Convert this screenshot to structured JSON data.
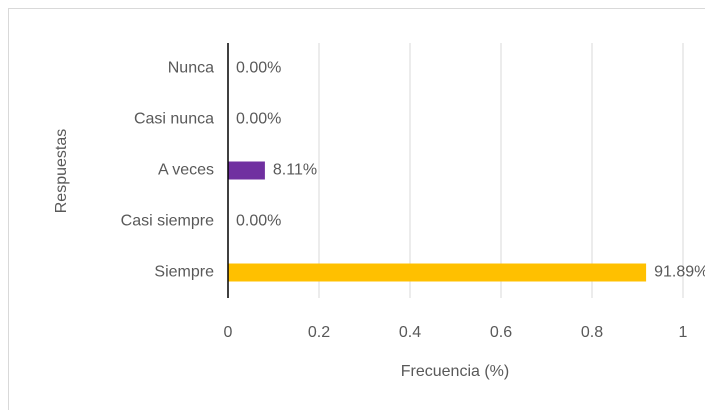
{
  "chart_data": {
    "type": "hbar",
    "categories": [
      "Nunca",
      "Casi nunca",
      "A veces",
      "Casi siempre",
      "Siempre"
    ],
    "values": [
      0,
      0,
      0.0811,
      0,
      0.9189
    ],
    "value_labels": [
      "0.00%",
      "0.00%",
      "8.11%",
      "0.00%",
      "91.89%"
    ],
    "colors": [
      null,
      null,
      "#7030a0",
      null,
      "#ffc000"
    ],
    "xlabel": "Frecuencia (%)",
    "ylabel": "Respuestas",
    "xlim": [
      0,
      1
    ],
    "xticks": [
      0,
      0.2,
      0.4,
      0.6,
      0.8,
      1
    ],
    "grid": true
  }
}
